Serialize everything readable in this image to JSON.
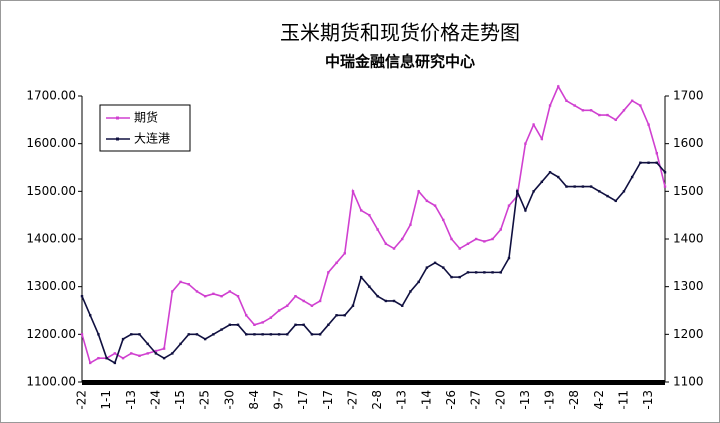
{
  "chart_data": {
    "type": "line",
    "title": "玉米期货和现货价格走势图",
    "subtitle": "中瑞金融信息研究中心",
    "categories": [
      "-22",
      null,
      null,
      "1-1",
      null,
      null,
      "-13",
      null,
      null,
      "-24",
      null,
      null,
      "-15",
      null,
      null,
      "-25",
      null,
      null,
      "-30",
      null,
      null,
      "8-4",
      null,
      null,
      "9-7",
      null,
      null,
      "-17",
      null,
      null,
      "-17",
      null,
      null,
      "-27",
      null,
      null,
      "2-8",
      null,
      null,
      "-13",
      null,
      null,
      "-14",
      null,
      null,
      "-26",
      null,
      null,
      "-27",
      null,
      null,
      "-20",
      null,
      null,
      "-13",
      null,
      null,
      "-19",
      null,
      null,
      "-28",
      null,
      null,
      "4-2",
      null,
      null,
      "-11",
      null,
      null,
      "-13",
      null,
      null
    ],
    "series": [
      {
        "name": "期货",
        "color": "#d040d0",
        "values": [
          1200,
          1140,
          1150,
          1150,
          1160,
          1150,
          1160,
          1155,
          1160,
          1165,
          1170,
          1290,
          1310,
          1305,
          1290,
          1280,
          1285,
          1280,
          1290,
          1280,
          1240,
          1220,
          1225,
          1235,
          1250,
          1260,
          1280,
          1270,
          1260,
          1270,
          1330,
          1350,
          1370,
          1500,
          1460,
          1450,
          1420,
          1390,
          1380,
          1400,
          1430,
          1500,
          1480,
          1470,
          1440,
          1400,
          1380,
          1390,
          1400,
          1395,
          1400,
          1420,
          1470,
          1490,
          1600,
          1640,
          1610,
          1680,
          1720,
          1690,
          1680,
          1670,
          1670,
          1660,
          1660,
          1650,
          1670,
          1690,
          1680,
          1640,
          1580,
          1510
        ]
      },
      {
        "name": "大连港",
        "color": "#101040",
        "values": [
          1280,
          1240,
          1200,
          1150,
          1140,
          1190,
          1200,
          1200,
          1180,
          1160,
          1150,
          1160,
          1180,
          1200,
          1200,
          1190,
          1200,
          1210,
          1220,
          1220,
          1200,
          1200,
          1200,
          1200,
          1200,
          1200,
          1220,
          1220,
          1200,
          1200,
          1220,
          1240,
          1240,
          1260,
          1320,
          1300,
          1280,
          1270,
          1270,
          1260,
          1290,
          1310,
          1340,
          1350,
          1340,
          1320,
          1320,
          1330,
          1330,
          1330,
          1330,
          1330,
          1360,
          1500,
          1460,
          1500,
          1520,
          1540,
          1530,
          1510,
          1510,
          1510,
          1510,
          1500,
          1490,
          1480,
          1500,
          1530,
          1560,
          1560,
          1560,
          1540
        ]
      }
    ],
    "ylim": [
      1100,
      1700
    ],
    "yticks": [
      {
        "value": 1100,
        "label": "1100.00"
      },
      {
        "value": 1200,
        "label": "1200.00"
      },
      {
        "value": 1300,
        "label": "1300.00"
      },
      {
        "value": 1400,
        "label": "1400.00"
      },
      {
        "value": 1500,
        "label": "1500.00"
      },
      {
        "value": 1600,
        "label": "1600.00"
      },
      {
        "value": 1700,
        "label": "1700.00"
      }
    ],
    "y2lim": [
      1100,
      1700
    ],
    "y2ticks": [
      1100,
      1200,
      1300,
      1400,
      1500,
      1600,
      1700
    ],
    "legend": "upper left"
  }
}
